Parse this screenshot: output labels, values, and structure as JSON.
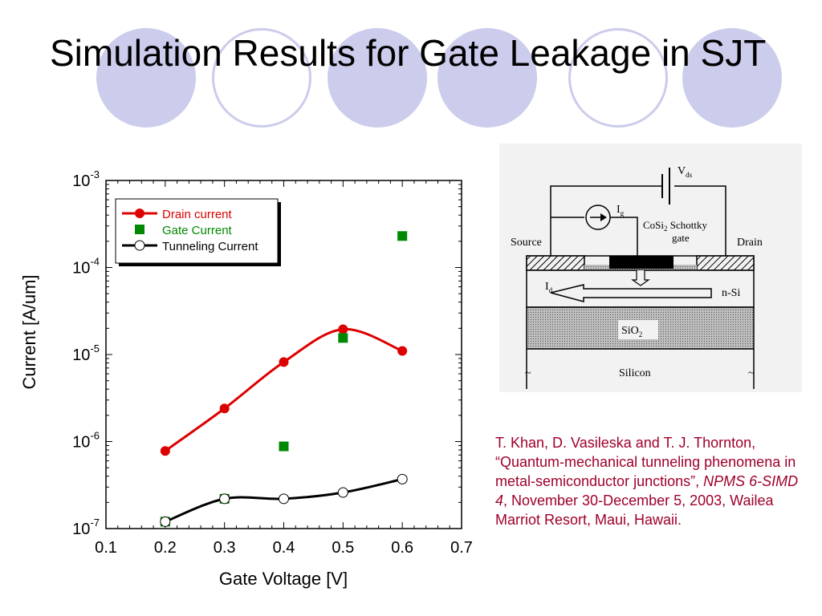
{
  "title": "Simulation Results for Gate Leakage in SJT",
  "chart_data": {
    "type": "scatter",
    "ylabel": "Current [A/um]",
    "xlabel": "Gate Voltage [V]",
    "y_scale": "log",
    "xlim": [
      0.1,
      0.7
    ],
    "ylim": [
      1e-07,
      0.001
    ],
    "x_ticks": [
      "0.1",
      "0.2",
      "0.3",
      "0.4",
      "0.5",
      "0.6",
      "0.7"
    ],
    "y_ticks": [
      {
        "base": "10",
        "exp": "-3"
      },
      {
        "base": "10",
        "exp": "-4"
      },
      {
        "base": "10",
        "exp": "-5"
      },
      {
        "base": "10",
        "exp": "-6"
      },
      {
        "base": "10",
        "exp": "-7"
      }
    ],
    "legend_position": "top-left",
    "series": [
      {
        "name": "Drain current",
        "marker": "filled-circle",
        "color": "#dd0000",
        "x": [
          0.2,
          0.3,
          0.4,
          0.5,
          0.6
        ],
        "y": [
          7.8e-07,
          2.4e-06,
          8.2e-06,
          1.95e-05,
          1.1e-05
        ]
      },
      {
        "name": "Gate Current",
        "marker": "filled-square",
        "color": "#008800",
        "x": [
          0.2,
          0.3,
          0.4,
          0.5,
          0.6
        ],
        "y": [
          1.2e-07,
          2.2e-07,
          8.8e-07,
          1.55e-05,
          0.00023
        ]
      },
      {
        "name": "Tunneling Current",
        "marker": "open-circle",
        "color": "#000000",
        "x": [
          0.2,
          0.3,
          0.4,
          0.5,
          0.6
        ],
        "y": [
          1.2e-07,
          2.2e-07,
          2.2e-07,
          2.6e-07,
          3.7e-07
        ]
      }
    ]
  },
  "diagram": {
    "vds": {
      "main": "V",
      "sub": "ds"
    },
    "ig": {
      "main": "I",
      "sub": "g"
    },
    "schottky_line1": {
      "pre": "CoSi",
      "sub": "2",
      "post": " Schottky"
    },
    "schottky_line2": "gate",
    "source": "Source",
    "drain": "Drain",
    "id": {
      "main": "I",
      "sub": "d"
    },
    "nsi": "n-Si",
    "sio2": {
      "main": "SiO",
      "sub": "2"
    },
    "silicon": "Silicon"
  },
  "citation": {
    "part1": "T. Khan, D. Vasileska and T. J. Thornton, “Quantum-mechanical tunneling phenomena in metal-semiconductor junctions”, ",
    "venue": "NPMS 6-SIMD 4",
    "part2": ", November 30-December 5, 2003, Wailea Marriot Resort, Maui, Hawaii."
  }
}
